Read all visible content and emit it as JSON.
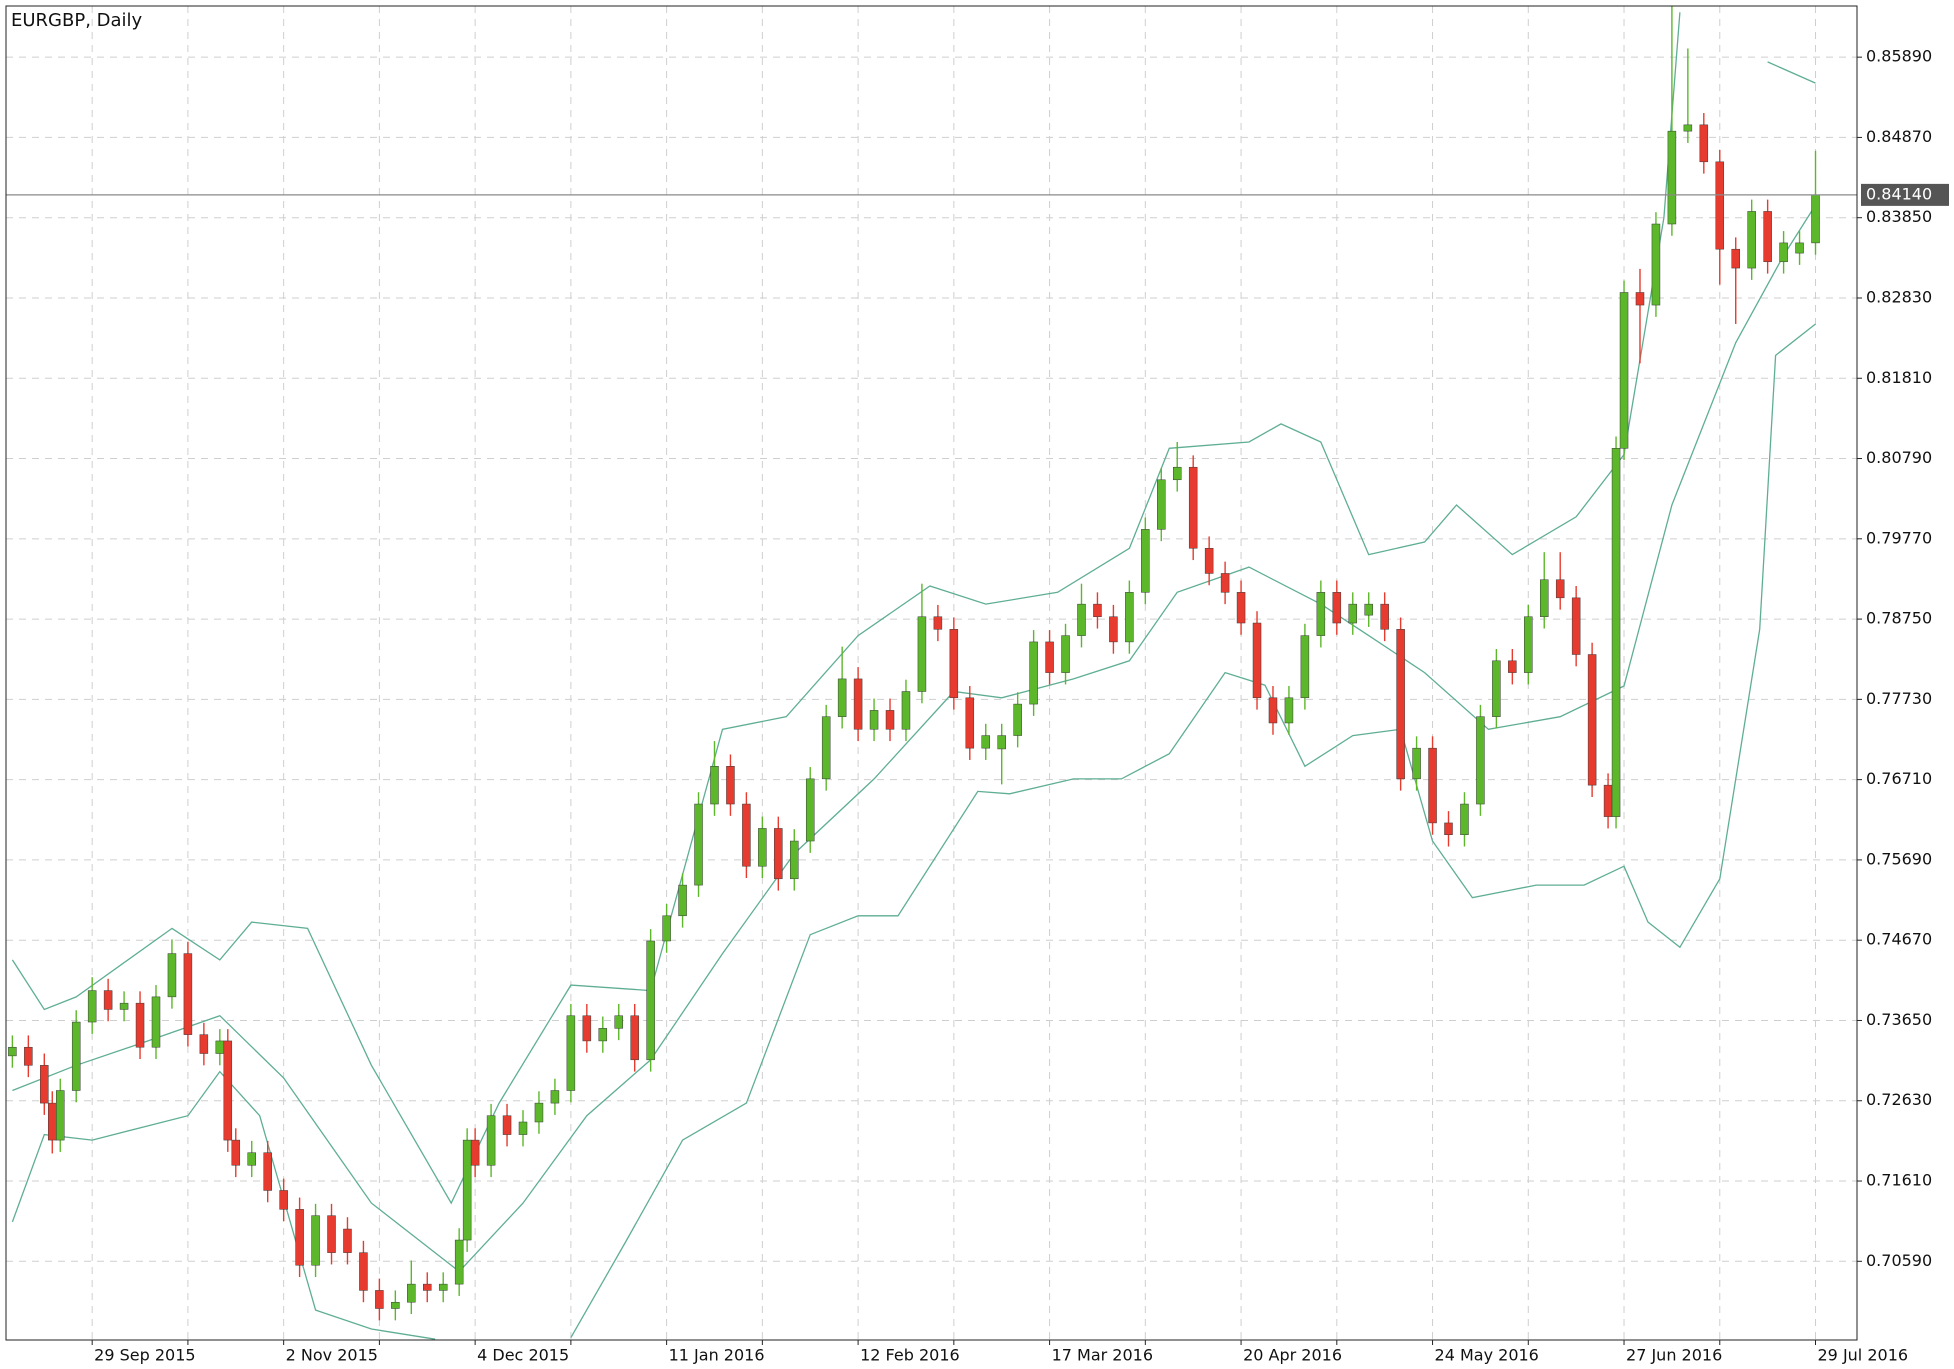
{
  "chart_data": {
    "type": "candlestick",
    "title": "EURGBP, Daily",
    "x": [
      0,
      2,
      4,
      5,
      6,
      8,
      10,
      12,
      14,
      16,
      18,
      20,
      22,
      24,
      26,
      27,
      28,
      30,
      32,
      34,
      36,
      38,
      40,
      42,
      44,
      46,
      48,
      50,
      52,
      54,
      56,
      57,
      58,
      60,
      62,
      64,
      66,
      68,
      70,
      72,
      74,
      76,
      78,
      80,
      82,
      84,
      86,
      88,
      90,
      92,
      94,
      96,
      98,
      100,
      102,
      104,
      106,
      108,
      110,
      112,
      114,
      116,
      118,
      120,
      122,
      124,
      126,
      128,
      130,
      132,
      134,
      136,
      138,
      140,
      142,
      144,
      146,
      148,
      150,
      152,
      154,
      156,
      158,
      160,
      162,
      164,
      166,
      168,
      170,
      172,
      174,
      176,
      178,
      180,
      182,
      184,
      186,
      188,
      190,
      192,
      194,
      196,
      198,
      200,
      201,
      202,
      204,
      206,
      208,
      210,
      212,
      214,
      216,
      218,
      220,
      222,
      224,
      226
    ],
    "open": [
      0.732,
      0.7331,
      0.7308,
      0.726,
      0.7213,
      0.7276,
      0.7363,
      0.7403,
      0.7379,
      0.7387,
      0.7331,
      0.7395,
      0.745,
      0.7347,
      0.7323,
      0.7339,
      0.7213,
      0.7181,
      0.7197,
      0.7149,
      0.7125,
      0.7054,
      0.7117,
      0.71,
      0.707,
      0.7022,
      0.6999,
      0.7007,
      0.703,
      0.7022,
      0.703,
      0.7086,
      0.7213,
      0.7181,
      0.7244,
      0.722,
      0.7236,
      0.726,
      0.7276,
      0.7371,
      0.7339,
      0.7355,
      0.7371,
      0.7315,
      0.7466,
      0.7498,
      0.7537,
      0.764,
      0.7688,
      0.764,
      0.7561,
      0.7609,
      0.7545,
      0.7593,
      0.7672,
      0.7751,
      0.7799,
      0.7735,
      0.7759,
      0.7735,
      0.7783,
      0.7878,
      0.7862,
      0.7775,
      0.7711,
      0.771,
      0.7727,
      0.7767,
      0.7846,
      0.7807,
      0.7854,
      0.7894,
      0.7878,
      0.7846,
      0.7909,
      0.7989,
      0.8052,
      0.8068,
      0.7965,
      0.7933,
      0.7909,
      0.787,
      0.7775,
      0.7743,
      0.7775,
      0.7854,
      0.7909,
      0.787,
      0.788,
      0.7894,
      0.7862,
      0.7672,
      0.7711,
      0.7616,
      0.7601,
      0.764,
      0.7751,
      0.7822,
      0.7807,
      0.7878,
      0.7925,
      0.7902,
      0.783,
      0.7664,
      0.7624,
      0.8092,
      0.829,
      0.8274,
      0.8377,
      0.8495,
      0.8503,
      0.8456,
      0.8345,
      0.8321,
      0.8393,
      0.8329,
      0.834,
      0.8353
    ],
    "high": [
      0.7346,
      0.7346,
      0.7323,
      0.7275,
      0.7291,
      0.7378,
      0.742,
      0.7418,
      0.7402,
      0.7402,
      0.741,
      0.7468,
      0.7465,
      0.7362,
      0.7354,
      0.7354,
      0.7228,
      0.7212,
      0.7212,
      0.7164,
      0.714,
      0.7132,
      0.7132,
      0.7115,
      0.7085,
      0.7037,
      0.7022,
      0.706,
      0.7045,
      0.7045,
      0.7101,
      0.7228,
      0.7228,
      0.7259,
      0.7259,
      0.7251,
      0.7275,
      0.7291,
      0.7386,
      0.7386,
      0.737,
      0.7386,
      0.7386,
      0.7481,
      0.7513,
      0.7552,
      0.7655,
      0.772,
      0.7703,
      0.7655,
      0.7624,
      0.7624,
      0.7608,
      0.7687,
      0.7766,
      0.784,
      0.7814,
      0.7774,
      0.7774,
      0.7798,
      0.792,
      0.7893,
      0.7877,
      0.779,
      0.7742,
      0.7742,
      0.7782,
      0.7861,
      0.7861,
      0.7869,
      0.792,
      0.7909,
      0.7893,
      0.7924,
      0.8004,
      0.8067,
      0.81,
      0.8083,
      0.798,
      0.7948,
      0.7924,
      0.7885,
      0.779,
      0.779,
      0.7869,
      0.7924,
      0.7924,
      0.7909,
      0.7909,
      0.7909,
      0.7877,
      0.7726,
      0.7726,
      0.7631,
      0.7655,
      0.7766,
      0.7837,
      0.7837,
      0.7893,
      0.796,
      0.796,
      0.7917,
      0.7845,
      0.7679,
      0.8107,
      0.8305,
      0.832,
      0.8392,
      0.8654,
      0.86,
      0.8518,
      0.8471,
      0.836,
      0.8408,
      0.8408,
      0.8368,
      0.8368,
      0.847
    ],
    "low": [
      0.7305,
      0.7293,
      0.7245,
      0.7196,
      0.7198,
      0.7261,
      0.7348,
      0.7364,
      0.7364,
      0.7316,
      0.7316,
      0.738,
      0.7332,
      0.7308,
      0.7308,
      0.7198,
      0.7166,
      0.7166,
      0.7134,
      0.711,
      0.7039,
      0.7039,
      0.7055,
      0.7055,
      0.7007,
      0.6984,
      0.6984,
      0.6992,
      0.7007,
      0.7007,
      0.7015,
      0.7071,
      0.7166,
      0.7166,
      0.7205,
      0.7205,
      0.7221,
      0.7245,
      0.7261,
      0.7324,
      0.7324,
      0.734,
      0.73,
      0.73,
      0.7451,
      0.7483,
      0.7522,
      0.7625,
      0.7625,
      0.7546,
      0.7546,
      0.753,
      0.753,
      0.7578,
      0.7657,
      0.7736,
      0.772,
      0.772,
      0.772,
      0.772,
      0.7768,
      0.7847,
      0.776,
      0.7696,
      0.7696,
      0.7665,
      0.7712,
      0.7752,
      0.7792,
      0.7792,
      0.7839,
      0.7863,
      0.7831,
      0.7831,
      0.7894,
      0.7974,
      0.8037,
      0.795,
      0.7918,
      0.7894,
      0.7855,
      0.776,
      0.7728,
      0.7728,
      0.776,
      0.7839,
      0.7855,
      0.7855,
      0.7865,
      0.7847,
      0.7657,
      0.7657,
      0.7601,
      0.7586,
      0.7586,
      0.7625,
      0.7736,
      0.7792,
      0.7792,
      0.7863,
      0.7887,
      0.7815,
      0.7649,
      0.7609,
      0.7609,
      0.8077,
      0.82,
      0.8259,
      0.8362,
      0.848,
      0.8441,
      0.83,
      0.825,
      0.8306,
      0.8314,
      0.8314,
      0.8325,
      0.8338
    ],
    "close": [
      0.7331,
      0.7308,
      0.726,
      0.7213,
      0.7276,
      0.7363,
      0.7403,
      0.7379,
      0.7387,
      0.7331,
      0.7395,
      0.745,
      0.7347,
      0.7323,
      0.7339,
      0.7213,
      0.7181,
      0.7197,
      0.7149,
      0.7125,
      0.7054,
      0.7117,
      0.707,
      0.707,
      0.7022,
      0.6999,
      0.7007,
      0.703,
      0.7022,
      0.703,
      0.7086,
      0.7213,
      0.7181,
      0.7244,
      0.722,
      0.7236,
      0.726,
      0.7276,
      0.7371,
      0.7339,
      0.7355,
      0.7371,
      0.7315,
      0.7466,
      0.7498,
      0.7537,
      0.764,
      0.7688,
      0.764,
      0.7561,
      0.7609,
      0.7545,
      0.7593,
      0.7672,
      0.7751,
      0.7799,
      0.7735,
      0.7759,
      0.7735,
      0.7783,
      0.7878,
      0.7862,
      0.7775,
      0.7711,
      0.7727,
      0.7727,
      0.7767,
      0.7846,
      0.7807,
      0.7854,
      0.7894,
      0.7878,
      0.7846,
      0.7909,
      0.7989,
      0.8052,
      0.8068,
      0.7965,
      0.7933,
      0.7909,
      0.787,
      0.7775,
      0.7743,
      0.7775,
      0.7854,
      0.7909,
      0.787,
      0.7894,
      0.7894,
      0.7862,
      0.7672,
      0.7711,
      0.7616,
      0.7601,
      0.764,
      0.7751,
      0.7822,
      0.7807,
      0.7878,
      0.7925,
      0.7902,
      0.783,
      0.7664,
      0.7624,
      0.8092,
      0.829,
      0.8274,
      0.8377,
      0.8495,
      0.8503,
      0.8456,
      0.8345,
      0.8321,
      0.8393,
      0.8329,
      0.8353,
      0.8353,
      0.8414
    ],
    "up_color": "#5cb82a",
    "down_color": "#e63b2e",
    "wick_color": "#5a8f3a",
    "overlays": [
      {
        "color": "#5fae93",
        "x": [
          0,
          4,
          8,
          20,
          26,
          30,
          37,
          45,
          55,
          61,
          70,
          80,
          89,
          97,
          106,
          115,
          122,
          131,
          140,
          145,
          155,
          159,
          164,
          170,
          177,
          181,
          188,
          196,
          202,
          207,
          209,
          215,
          220,
          226
        ],
        "values": [
          0.7442,
          0.7379,
          0.7395,
          0.7482,
          0.7442,
          0.749,
          0.7482,
          0.7308,
          0.7133,
          0.726,
          0.741,
          0.7403,
          0.7735,
          0.7751,
          0.7854,
          0.7917,
          0.7894,
          0.7909,
          0.7965,
          0.8092,
          0.81,
          0.8123,
          0.81,
          0.7957,
          0.7973,
          0.802,
          0.7957,
          0.8005,
          0.8084,
          0.8385,
          0.8646,
          null,
          0.8583,
          0.8556
        ]
      },
      {
        "color": "#5fae93",
        "x": [
          0,
          8,
          17,
          26,
          34,
          45,
          56,
          64,
          72,
          80,
          89,
          98,
          108,
          118,
          124,
          133,
          140,
          146,
          155,
          164,
          170,
          177,
          185,
          194,
          202,
          208,
          216,
          222,
          226
        ],
        "values": [
          0.7276,
          0.7308,
          0.7339,
          0.7371,
          0.7292,
          0.7133,
          0.7046,
          0.7133,
          0.7244,
          0.7315,
          0.745,
          0.7577,
          0.7672,
          0.7783,
          0.7775,
          0.7799,
          0.7822,
          0.7909,
          0.7941,
          0.7894,
          0.7854,
          0.7807,
          0.7735,
          0.7751,
          0.779,
          0.802,
          0.8226,
          0.8337,
          0.8401
        ]
      },
      {
        "color": "#5fae93",
        "x": [
          0,
          4,
          10,
          22,
          26,
          31,
          38,
          45,
          53,
          60,
          70,
          77,
          84,
          92,
          100,
          106,
          111,
          121,
          125,
          133,
          139,
          145,
          152,
          157,
          162,
          168,
          174,
          178,
          183,
          191,
          197,
          202,
          205,
          209,
          214,
          219,
          221,
          226
        ],
        "values": [
          0.7109,
          0.722,
          0.7213,
          0.7244,
          0.73,
          0.7244,
          0.6997,
          0.6973,
          0.696,
          null,
          0.6962,
          0.7086,
          0.7213,
          0.726,
          0.7474,
          0.7498,
          0.7498,
          0.7656,
          0.7653,
          0.7672,
          0.7672,
          0.7704,
          0.7807,
          0.7791,
          0.7688,
          0.7727,
          0.7735,
          0.7593,
          0.7521,
          0.7537,
          0.7537,
          0.7561,
          0.749,
          0.7458,
          0.7545,
          0.7862,
          0.821,
          0.825
        ]
      }
    ],
    "xlim": [
      -0.8,
      231.2
    ],
    "xticks": [
      {
        "value": 10,
        "label": "29 Sep 2015"
      },
      {
        "value": 22,
        "label": null
      },
      {
        "value": 34,
        "label": "2 Nov 2015"
      },
      {
        "value": 46,
        "label": null
      },
      {
        "value": 58,
        "label": "4 Dec 2015"
      },
      {
        "value": 70,
        "label": null
      },
      {
        "value": 82,
        "label": "11 Jan 2016"
      },
      {
        "value": 94,
        "label": null
      },
      {
        "value": 106,
        "label": "12 Feb 2016"
      },
      {
        "value": 118,
        "label": null
      },
      {
        "value": 130,
        "label": "17 Mar 2016"
      },
      {
        "value": 142,
        "label": null
      },
      {
        "value": 154,
        "label": "20 Apr 2016"
      },
      {
        "value": 166,
        "label": null
      },
      {
        "value": 178,
        "label": "24 May 2016"
      },
      {
        "value": 190,
        "label": null
      },
      {
        "value": 202,
        "label": "27 Jun 2016"
      },
      {
        "value": 214,
        "label": null
      },
      {
        "value": 226,
        "label": "29 Jul 2016"
      }
    ],
    "ylim": [
      0.6959,
      0.8654
    ],
    "yticks": [
      {
        "value": 0.8589,
        "label": "0.85890"
      },
      {
        "value": 0.8487,
        "label": "0.84870"
      },
      {
        "value": 0.8385,
        "label": "0.83850"
      },
      {
        "value": 0.8283,
        "label": "0.82830"
      },
      {
        "value": 0.8181,
        "label": "0.81810"
      },
      {
        "value": 0.8079,
        "label": "0.80790"
      },
      {
        "value": 0.7977,
        "label": "0.79770"
      },
      {
        "value": 0.7875,
        "label": "0.78750"
      },
      {
        "value": 0.7773,
        "label": "0.77730"
      },
      {
        "value": 0.7671,
        "label": "0.76710"
      },
      {
        "value": 0.7569,
        "label": "0.75690"
      },
      {
        "value": 0.7467,
        "label": "0.74670"
      },
      {
        "value": 0.7365,
        "label": "0.73650"
      },
      {
        "value": 0.7263,
        "label": "0.72630"
      },
      {
        "value": 0.7161,
        "label": "0.71610"
      },
      {
        "value": 0.7059,
        "label": "0.70590"
      }
    ],
    "current_price": {
      "value": 0.8414,
      "label": "0.84140"
    },
    "grid": true
  }
}
